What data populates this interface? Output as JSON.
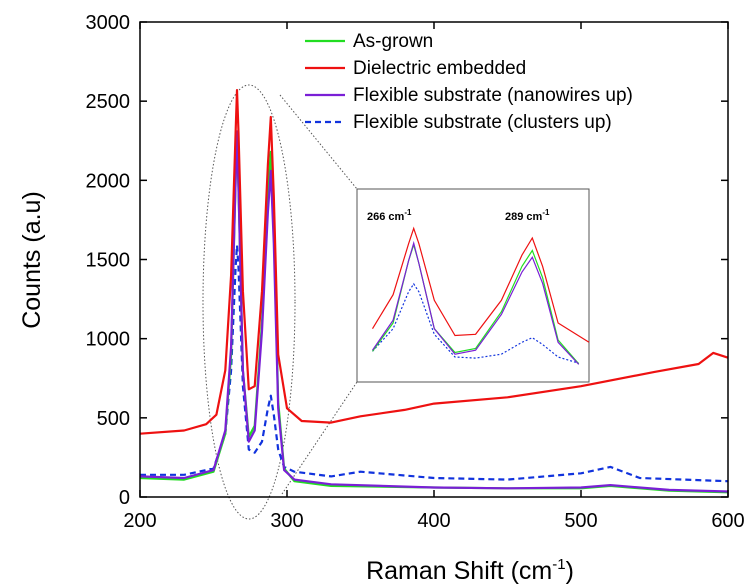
{
  "chart_data": {
    "type": "line",
    "xlabel": "Raman Shift (cm",
    "xlabel_sup": "-1",
    "xlabel_end": ")",
    "ylabel": "Counts (a.u)",
    "xlim": [
      200,
      600
    ],
    "ylim": [
      0,
      3000
    ],
    "xticks": [
      200,
      300,
      400,
      500,
      600
    ],
    "yticks": [
      0,
      500,
      1000,
      1500,
      2000,
      2500,
      3000
    ],
    "legend_position": "top-right",
    "series": [
      {
        "name": "As-grown",
        "color": "#22dd22",
        "dash": "solid",
        "points": [
          [
            200,
            120
          ],
          [
            230,
            110
          ],
          [
            250,
            160
          ],
          [
            258,
            400
          ],
          [
            262,
            900
          ],
          [
            265,
            2000
          ],
          [
            266,
            2280
          ],
          [
            267,
            1950
          ],
          [
            270,
            800
          ],
          [
            274,
            380
          ],
          [
            278,
            450
          ],
          [
            283,
            1100
          ],
          [
            287,
            1900
          ],
          [
            289,
            2180
          ],
          [
            291,
            1700
          ],
          [
            294,
            600
          ],
          [
            298,
            180
          ],
          [
            305,
            100
          ],
          [
            330,
            70
          ],
          [
            400,
            60
          ],
          [
            450,
            55
          ],
          [
            500,
            55
          ],
          [
            520,
            70
          ],
          [
            560,
            40
          ],
          [
            600,
            30
          ]
        ]
      },
      {
        "name": "Dielectric embedded",
        "color": "#ee1111",
        "dash": "solid",
        "points": [
          [
            200,
            400
          ],
          [
            230,
            420
          ],
          [
            245,
            460
          ],
          [
            252,
            520
          ],
          [
            258,
            800
          ],
          [
            262,
            1400
          ],
          [
            265,
            2300
          ],
          [
            266,
            2570
          ],
          [
            267,
            2300
          ],
          [
            270,
            1300
          ],
          [
            274,
            680
          ],
          [
            278,
            700
          ],
          [
            283,
            1300
          ],
          [
            287,
            2100
          ],
          [
            289,
            2400
          ],
          [
            291,
            1900
          ],
          [
            294,
            900
          ],
          [
            300,
            560
          ],
          [
            310,
            480
          ],
          [
            330,
            470
          ],
          [
            350,
            510
          ],
          [
            380,
            550
          ],
          [
            400,
            590
          ],
          [
            450,
            630
          ],
          [
            500,
            700
          ],
          [
            550,
            790
          ],
          [
            580,
            840
          ],
          [
            590,
            910
          ],
          [
            600,
            880
          ]
        ]
      },
      {
        "name": "Flexible substrate (nanowires up)",
        "color": "#7a1fd6",
        "dash": "solid",
        "points": [
          [
            200,
            130
          ],
          [
            230,
            120
          ],
          [
            250,
            170
          ],
          [
            258,
            420
          ],
          [
            262,
            950
          ],
          [
            265,
            2000
          ],
          [
            266,
            2310
          ],
          [
            267,
            1950
          ],
          [
            270,
            800
          ],
          [
            274,
            350
          ],
          [
            278,
            420
          ],
          [
            283,
            1050
          ],
          [
            287,
            1800
          ],
          [
            289,
            2060
          ],
          [
            291,
            1600
          ],
          [
            294,
            560
          ],
          [
            298,
            170
          ],
          [
            305,
            110
          ],
          [
            330,
            80
          ],
          [
            400,
            60
          ],
          [
            450,
            55
          ],
          [
            500,
            60
          ],
          [
            520,
            75
          ],
          [
            560,
            45
          ],
          [
            600,
            35
          ]
        ]
      },
      {
        "name": "Flexible substrate (clusters up)",
        "color": "#1133dd",
        "dash": "dashed",
        "points": [
          [
            200,
            140
          ],
          [
            230,
            140
          ],
          [
            250,
            180
          ],
          [
            258,
            400
          ],
          [
            262,
            800
          ],
          [
            265,
            1450
          ],
          [
            266,
            1590
          ],
          [
            267,
            1450
          ],
          [
            270,
            700
          ],
          [
            274,
            300
          ],
          [
            278,
            280
          ],
          [
            283,
            350
          ],
          [
            287,
            560
          ],
          [
            289,
            640
          ],
          [
            291,
            520
          ],
          [
            294,
            300
          ],
          [
            298,
            190
          ],
          [
            305,
            160
          ],
          [
            330,
            130
          ],
          [
            350,
            160
          ],
          [
            400,
            120
          ],
          [
            450,
            110
          ],
          [
            500,
            150
          ],
          [
            520,
            190
          ],
          [
            540,
            120
          ],
          [
            600,
            100
          ]
        ]
      }
    ],
    "inset": {
      "labels": [
        "266 cm",
        "289 cm"
      ],
      "label_sup": "-1"
    }
  }
}
